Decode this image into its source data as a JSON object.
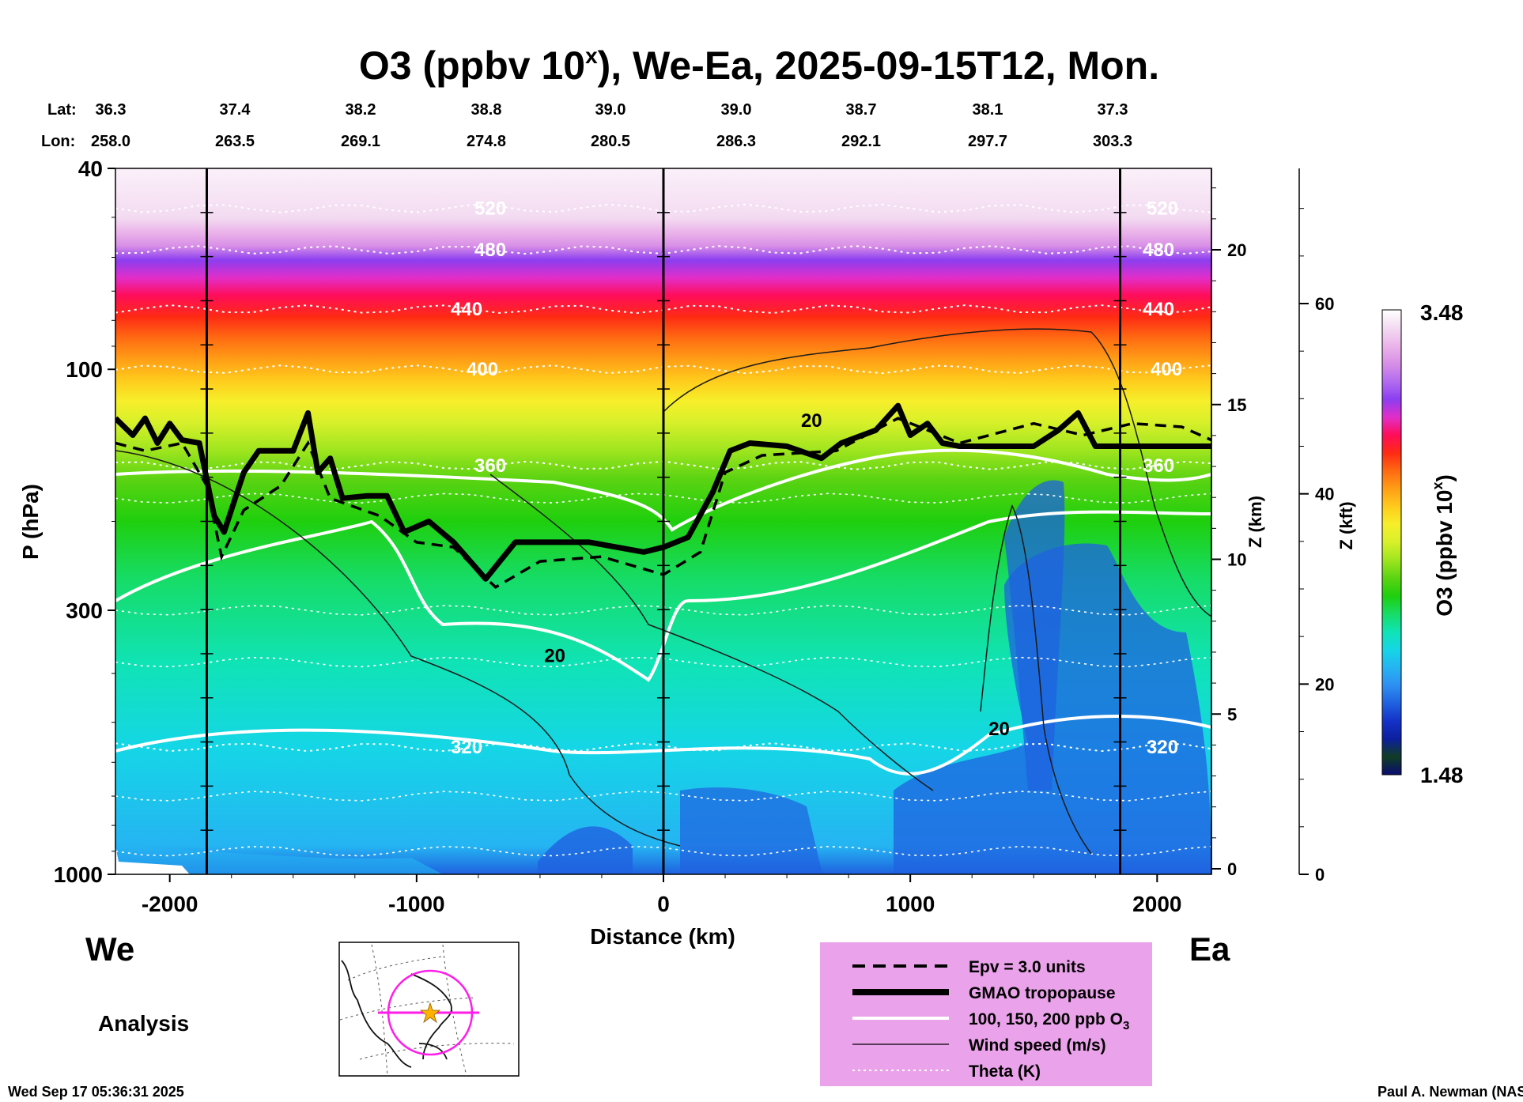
{
  "colors": {
    "ozone_scale": [
      "#ffffff",
      "#f3dbf1",
      "#ebb4ea",
      "#d88fe6",
      "#b36cf0",
      "#8c3ef0",
      "#e22ec9",
      "#ff0d5a",
      "#ff2a14",
      "#ff6a12",
      "#ff9d16",
      "#ffcb1c",
      "#f6ef2a",
      "#d7f02a",
      "#9ee51f",
      "#5bd312",
      "#1fcf0d",
      "#16dc66",
      "#10e3b5",
      "#15d6e6",
      "#25b4f2",
      "#2e8ff2",
      "#1f61e0",
      "#1432c8",
      "#0c1f9e",
      "#103d24",
      "#0a0a70"
    ],
    "legend_bg": "#eaa2ea",
    "map_line": "#ff1ee8",
    "map_star": "#ffb300"
  },
  "chart_data": {
    "type": "heatmap",
    "title_main": "O3 (ppbv 10",
    "title_sup": "x",
    "title_rest": "), We-Ea, 2025-09-15T12, Mon.",
    "lat_label": "Lat:",
    "lon_label": "Lon:",
    "lat_values": [
      "36.3",
      "37.4",
      "38.2",
      "38.8",
      "39.0",
      "39.0",
      "38.7",
      "38.1",
      "37.3"
    ],
    "lon_values": [
      "258.0",
      "263.5",
      "269.1",
      "274.8",
      "280.5",
      "286.3",
      "292.1",
      "297.7",
      "303.3"
    ],
    "xlabel": "Distance (km)",
    "xlim": [
      -2220,
      2220
    ],
    "x_ticks": [
      -2000,
      -1000,
      0,
      1000,
      2000
    ],
    "x_tick_labels": [
      "-2000",
      "-1000",
      "0",
      "1000",
      "2000"
    ],
    "ylabel": "P (hPa)",
    "ylim": [
      1000,
      40
    ],
    "y_ticks": [
      40,
      100,
      300,
      1000
    ],
    "y_tick_labels": [
      "40",
      "100",
      "300",
      "1000"
    ],
    "z_km_label": "Z (km)",
    "z_km_ticks": [
      0,
      5,
      10,
      15,
      20
    ],
    "z_km_tick_labels": [
      "0",
      "5",
      "10",
      "15",
      "20"
    ],
    "z_kft_label": "Z (kft)",
    "z_kft_ticks": [
      0,
      20,
      40,
      60
    ],
    "z_kft_tick_labels": [
      "0",
      "20",
      "40",
      "60"
    ],
    "colorbar_label_main": "O3 (ppbv 10",
    "colorbar_label_sup": "x",
    "colorbar_label_rest": ")",
    "colorbar_range": [
      1.48,
      3.48
    ],
    "colorbar_min_label": "1.48",
    "colorbar_max_label": "3.48",
    "left_label": "We",
    "right_label": "Ea",
    "analysis_label": "Analysis",
    "theta_levels": [
      {
        "value": 520,
        "label": "520",
        "pressure": 48
      },
      {
        "value": 480,
        "label": "480",
        "pressure": 58
      },
      {
        "value": 440,
        "label": "440",
        "pressure": 76
      },
      {
        "value": 400,
        "label": "400",
        "pressure": 100
      },
      {
        "value": 360,
        "label": "360",
        "pressure": 155
      },
      {
        "value": 320,
        "label": "320",
        "pressure": 560
      }
    ],
    "wind_speed_labels": [
      {
        "value": 20,
        "label": "20",
        "x": -440,
        "p": 380
      },
      {
        "value": 20,
        "label": "20",
        "x": 600,
        "p": 130
      },
      {
        "value": 20,
        "label": "20",
        "x": 1360,
        "p": 530
      }
    ],
    "tropopause": [
      {
        "x": -2220,
        "p": 125
      },
      {
        "x": -2150,
        "p": 135
      },
      {
        "x": -2100,
        "p": 125
      },
      {
        "x": -2050,
        "p": 140
      },
      {
        "x": -2000,
        "p": 128
      },
      {
        "x": -1950,
        "p": 138
      },
      {
        "x": -1880,
        "p": 140
      },
      {
        "x": -1820,
        "p": 195
      },
      {
        "x": -1780,
        "p": 210
      },
      {
        "x": -1700,
        "p": 160
      },
      {
        "x": -1640,
        "p": 145
      },
      {
        "x": -1500,
        "p": 145
      },
      {
        "x": -1440,
        "p": 122
      },
      {
        "x": -1400,
        "p": 160
      },
      {
        "x": -1350,
        "p": 150
      },
      {
        "x": -1300,
        "p": 180
      },
      {
        "x": -1200,
        "p": 178
      },
      {
        "x": -1120,
        "p": 178
      },
      {
        "x": -1050,
        "p": 210
      },
      {
        "x": -950,
        "p": 200
      },
      {
        "x": -850,
        "p": 220
      },
      {
        "x": -720,
        "p": 260
      },
      {
        "x": -600,
        "p": 220
      },
      {
        "x": -300,
        "p": 220
      },
      {
        "x": -80,
        "p": 230
      },
      {
        "x": 0,
        "p": 225
      },
      {
        "x": 100,
        "p": 215
      },
      {
        "x": 200,
        "p": 175
      },
      {
        "x": 270,
        "p": 145
      },
      {
        "x": 350,
        "p": 140
      },
      {
        "x": 500,
        "p": 142
      },
      {
        "x": 640,
        "p": 150
      },
      {
        "x": 720,
        "p": 140
      },
      {
        "x": 860,
        "p": 132
      },
      {
        "x": 950,
        "p": 118
      },
      {
        "x": 1000,
        "p": 135
      },
      {
        "x": 1070,
        "p": 128
      },
      {
        "x": 1130,
        "p": 140
      },
      {
        "x": 1200,
        "p": 142
      },
      {
        "x": 1500,
        "p": 142
      },
      {
        "x": 1600,
        "p": 132
      },
      {
        "x": 1680,
        "p": 122
      },
      {
        "x": 1750,
        "p": 142
      },
      {
        "x": 2220,
        "p": 142
      }
    ],
    "epv": [
      {
        "x": -2220,
        "p": 140
      },
      {
        "x": -2100,
        "p": 145
      },
      {
        "x": -1950,
        "p": 140
      },
      {
        "x": -1850,
        "p": 170
      },
      {
        "x": -1790,
        "p": 235
      },
      {
        "x": -1700,
        "p": 190
      },
      {
        "x": -1550,
        "p": 170
      },
      {
        "x": -1440,
        "p": 140
      },
      {
        "x": -1350,
        "p": 180
      },
      {
        "x": -1150,
        "p": 195
      },
      {
        "x": -1000,
        "p": 220
      },
      {
        "x": -850,
        "p": 225
      },
      {
        "x": -680,
        "p": 270
      },
      {
        "x": -500,
        "p": 240
      },
      {
        "x": -250,
        "p": 235
      },
      {
        "x": 0,
        "p": 255
      },
      {
        "x": 150,
        "p": 230
      },
      {
        "x": 250,
        "p": 160
      },
      {
        "x": 400,
        "p": 148
      },
      {
        "x": 700,
        "p": 145
      },
      {
        "x": 950,
        "p": 125
      },
      {
        "x": 1200,
        "p": 140
      },
      {
        "x": 1500,
        "p": 128
      },
      {
        "x": 1700,
        "p": 135
      },
      {
        "x": 1900,
        "p": 128
      },
      {
        "x": 2100,
        "p": 130
      },
      {
        "x": 2220,
        "p": 138
      }
    ],
    "legend": [
      {
        "style": "dashed",
        "label": "Epv = 3.0 units"
      },
      {
        "style": "thick",
        "label": "GMAO tropopause"
      },
      {
        "style": "white",
        "label": "100, 150, 200 ppb O"
      },
      {
        "style": "thin",
        "label": "Wind speed (m/s)"
      },
      {
        "style": "dotted",
        "label": "Theta (K)"
      }
    ],
    "legend_o3_sub": "3",
    "timestamp": "Wed Sep 17 05:36:31 2025",
    "credit": "Paul A. Newman (NASA"
  }
}
